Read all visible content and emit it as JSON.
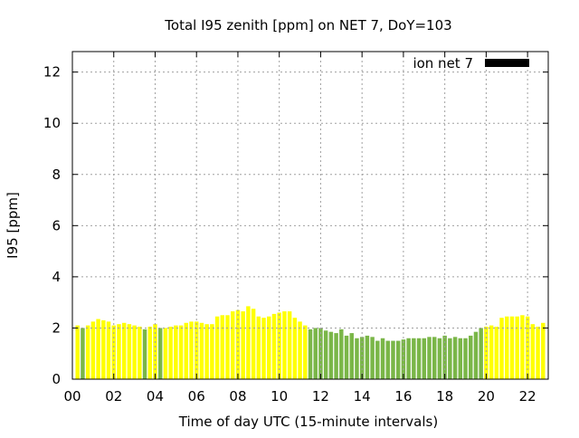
{
  "chart_data": {
    "type": "bar",
    "title": "Total I95 zenith [ppm] on NET 7, DoY=103",
    "xlabel": "Time of day UTC (15-minute intervals)",
    "ylabel": "I95 [ppm]",
    "xlim": [
      0,
      23
    ],
    "ylim": [
      0,
      12.8
    ],
    "xticks": [
      "00",
      "02",
      "04",
      "06",
      "08",
      "10",
      "12",
      "14",
      "16",
      "18",
      "20",
      "22"
    ],
    "yticks": [
      "0",
      "2",
      "4",
      "6",
      "8",
      "10",
      "12"
    ],
    "grid": true,
    "legend": {
      "position": "top-right",
      "entries": [
        {
          "label": "ion net 7",
          "color": "#000000"
        }
      ]
    },
    "colors": {
      "yellow": "#ffff00",
      "green": "#7ab648"
    },
    "bar_interval_hours": 0.25,
    "bars": [
      {
        "x": 0.25,
        "value": 2.1,
        "color": "yellow"
      },
      {
        "x": 0.5,
        "value": 2.0,
        "color": "green"
      },
      {
        "x": 0.75,
        "value": 2.1,
        "color": "yellow"
      },
      {
        "x": 1.0,
        "value": 2.25,
        "color": "yellow"
      },
      {
        "x": 1.25,
        "value": 2.35,
        "color": "yellow"
      },
      {
        "x": 1.5,
        "value": 2.3,
        "color": "yellow"
      },
      {
        "x": 1.75,
        "value": 2.25,
        "color": "yellow"
      },
      {
        "x": 2.0,
        "value": 2.1,
        "color": "yellow"
      },
      {
        "x": 2.25,
        "value": 2.15,
        "color": "yellow"
      },
      {
        "x": 2.5,
        "value": 2.2,
        "color": "yellow"
      },
      {
        "x": 2.75,
        "value": 2.15,
        "color": "yellow"
      },
      {
        "x": 3.0,
        "value": 2.1,
        "color": "yellow"
      },
      {
        "x": 3.25,
        "value": 2.05,
        "color": "yellow"
      },
      {
        "x": 3.5,
        "value": 1.95,
        "color": "green"
      },
      {
        "x": 3.75,
        "value": 2.05,
        "color": "yellow"
      },
      {
        "x": 4.0,
        "value": 2.15,
        "color": "yellow"
      },
      {
        "x": 4.25,
        "value": 2.0,
        "color": "green"
      },
      {
        "x": 4.5,
        "value": 2.0,
        "color": "yellow"
      },
      {
        "x": 4.75,
        "value": 2.05,
        "color": "yellow"
      },
      {
        "x": 5.0,
        "value": 2.1,
        "color": "yellow"
      },
      {
        "x": 5.25,
        "value": 2.1,
        "color": "yellow"
      },
      {
        "x": 5.5,
        "value": 2.2,
        "color": "yellow"
      },
      {
        "x": 5.75,
        "value": 2.25,
        "color": "yellow"
      },
      {
        "x": 6.0,
        "value": 2.25,
        "color": "yellow"
      },
      {
        "x": 6.25,
        "value": 2.2,
        "color": "yellow"
      },
      {
        "x": 6.5,
        "value": 2.15,
        "color": "yellow"
      },
      {
        "x": 6.75,
        "value": 2.15,
        "color": "yellow"
      },
      {
        "x": 7.0,
        "value": 2.45,
        "color": "yellow"
      },
      {
        "x": 7.25,
        "value": 2.5,
        "color": "yellow"
      },
      {
        "x": 7.5,
        "value": 2.5,
        "color": "yellow"
      },
      {
        "x": 7.75,
        "value": 2.65,
        "color": "yellow"
      },
      {
        "x": 8.0,
        "value": 2.7,
        "color": "yellow"
      },
      {
        "x": 8.25,
        "value": 2.65,
        "color": "yellow"
      },
      {
        "x": 8.5,
        "value": 2.85,
        "color": "yellow"
      },
      {
        "x": 8.75,
        "value": 2.75,
        "color": "yellow"
      },
      {
        "x": 9.0,
        "value": 2.45,
        "color": "yellow"
      },
      {
        "x": 9.25,
        "value": 2.4,
        "color": "yellow"
      },
      {
        "x": 9.5,
        "value": 2.45,
        "color": "yellow"
      },
      {
        "x": 9.75,
        "value": 2.55,
        "color": "yellow"
      },
      {
        "x": 10.0,
        "value": 2.6,
        "color": "yellow"
      },
      {
        "x": 10.25,
        "value": 2.65,
        "color": "yellow"
      },
      {
        "x": 10.5,
        "value": 2.65,
        "color": "yellow"
      },
      {
        "x": 10.75,
        "value": 2.4,
        "color": "yellow"
      },
      {
        "x": 11.0,
        "value": 2.25,
        "color": "yellow"
      },
      {
        "x": 11.25,
        "value": 2.1,
        "color": "yellow"
      },
      {
        "x": 11.5,
        "value": 1.95,
        "color": "green"
      },
      {
        "x": 11.75,
        "value": 2.0,
        "color": "green"
      },
      {
        "x": 12.0,
        "value": 2.0,
        "color": "green"
      },
      {
        "x": 12.25,
        "value": 1.9,
        "color": "green"
      },
      {
        "x": 12.5,
        "value": 1.85,
        "color": "green"
      },
      {
        "x": 12.75,
        "value": 1.8,
        "color": "green"
      },
      {
        "x": 13.0,
        "value": 1.95,
        "color": "green"
      },
      {
        "x": 13.25,
        "value": 1.7,
        "color": "green"
      },
      {
        "x": 13.5,
        "value": 1.8,
        "color": "green"
      },
      {
        "x": 13.75,
        "value": 1.6,
        "color": "green"
      },
      {
        "x": 14.0,
        "value": 1.65,
        "color": "green"
      },
      {
        "x": 14.25,
        "value": 1.7,
        "color": "green"
      },
      {
        "x": 14.5,
        "value": 1.65,
        "color": "green"
      },
      {
        "x": 14.75,
        "value": 1.5,
        "color": "green"
      },
      {
        "x": 15.0,
        "value": 1.6,
        "color": "green"
      },
      {
        "x": 15.25,
        "value": 1.5,
        "color": "green"
      },
      {
        "x": 15.5,
        "value": 1.5,
        "color": "green"
      },
      {
        "x": 15.75,
        "value": 1.5,
        "color": "green"
      },
      {
        "x": 16.0,
        "value": 1.55,
        "color": "green"
      },
      {
        "x": 16.25,
        "value": 1.6,
        "color": "green"
      },
      {
        "x": 16.5,
        "value": 1.6,
        "color": "green"
      },
      {
        "x": 16.75,
        "value": 1.6,
        "color": "green"
      },
      {
        "x": 17.0,
        "value": 1.6,
        "color": "green"
      },
      {
        "x": 17.25,
        "value": 1.65,
        "color": "green"
      },
      {
        "x": 17.5,
        "value": 1.65,
        "color": "green"
      },
      {
        "x": 17.75,
        "value": 1.6,
        "color": "green"
      },
      {
        "x": 18.0,
        "value": 1.7,
        "color": "green"
      },
      {
        "x": 18.25,
        "value": 1.6,
        "color": "green"
      },
      {
        "x": 18.5,
        "value": 1.65,
        "color": "green"
      },
      {
        "x": 18.75,
        "value": 1.6,
        "color": "green"
      },
      {
        "x": 19.0,
        "value": 1.6,
        "color": "green"
      },
      {
        "x": 19.25,
        "value": 1.7,
        "color": "green"
      },
      {
        "x": 19.5,
        "value": 1.85,
        "color": "green"
      },
      {
        "x": 19.75,
        "value": 2.0,
        "color": "green"
      },
      {
        "x": 20.0,
        "value": 2.05,
        "color": "yellow"
      },
      {
        "x": 20.25,
        "value": 2.1,
        "color": "yellow"
      },
      {
        "x": 20.5,
        "value": 2.05,
        "color": "yellow"
      },
      {
        "x": 20.75,
        "value": 2.4,
        "color": "yellow"
      },
      {
        "x": 21.0,
        "value": 2.45,
        "color": "yellow"
      },
      {
        "x": 21.25,
        "value": 2.45,
        "color": "yellow"
      },
      {
        "x": 21.5,
        "value": 2.45,
        "color": "yellow"
      },
      {
        "x": 21.75,
        "value": 2.5,
        "color": "yellow"
      },
      {
        "x": 22.0,
        "value": 2.45,
        "color": "yellow"
      },
      {
        "x": 22.25,
        "value": 2.15,
        "color": "yellow"
      },
      {
        "x": 22.5,
        "value": 2.05,
        "color": "yellow"
      },
      {
        "x": 22.75,
        "value": 2.2,
        "color": "yellow"
      }
    ]
  }
}
